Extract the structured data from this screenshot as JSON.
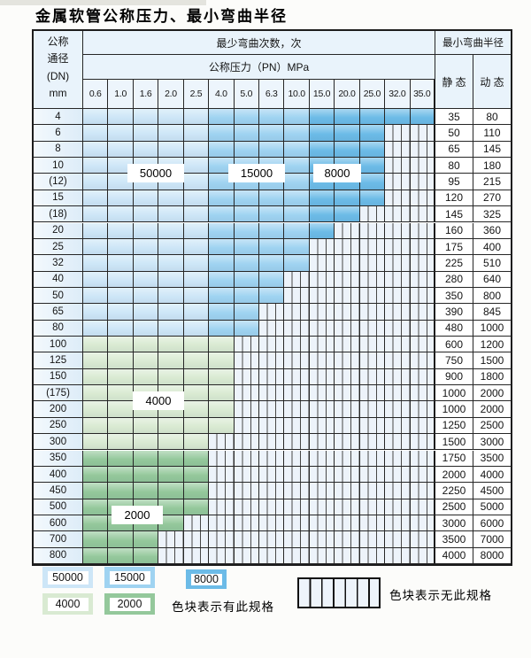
{
  "title": "金属软管公称压力、最小弯曲半径",
  "table": {
    "corner": "公称\n通径\n(DN)\nmm",
    "bend_header": "最少弯曲次数，次",
    "pn_header": "公称压力（PN）MPa",
    "radius_header": "最小弯曲半径",
    "static_header": "静 态",
    "dynamic_header": "动 态",
    "pressures": [
      "0.6",
      "1.0",
      "1.6",
      "2.0",
      "2.5",
      "4.0",
      "5.0",
      "6.3",
      "10.0",
      "15.0",
      "20.0",
      "25.0",
      "32.0",
      "35.0"
    ],
    "rows": [
      {
        "dn": "4",
        "until": "35.0",
        "palette": "blue",
        "static": "35",
        "dynamic": "80"
      },
      {
        "dn": "6",
        "until": "25.0",
        "palette": "blue",
        "static": "50",
        "dynamic": "110"
      },
      {
        "dn": "8",
        "until": "25.0",
        "palette": "blue",
        "static": "65",
        "dynamic": "145"
      },
      {
        "dn": "10",
        "until": "25.0",
        "palette": "blue",
        "static": "80",
        "dynamic": "180"
      },
      {
        "dn": "(12)",
        "until": "25.0",
        "palette": "blue",
        "static": "95",
        "dynamic": "215"
      },
      {
        "dn": "15",
        "until": "25.0",
        "palette": "blue",
        "static": "120",
        "dynamic": "270"
      },
      {
        "dn": "(18)",
        "until": "20.0",
        "palette": "blue",
        "static": "145",
        "dynamic": "325"
      },
      {
        "dn": "20",
        "until": "15.0",
        "palette": "blue",
        "static": "160",
        "dynamic": "360"
      },
      {
        "dn": "25",
        "until": "10.0",
        "palette": "blue",
        "static": "175",
        "dynamic": "400"
      },
      {
        "dn": "32",
        "until": "10.0",
        "palette": "blue",
        "static": "225",
        "dynamic": "510"
      },
      {
        "dn": "40",
        "until": "6.3",
        "palette": "blue",
        "static": "280",
        "dynamic": "640"
      },
      {
        "dn": "50",
        "until": "6.3",
        "palette": "blue",
        "static": "350",
        "dynamic": "800"
      },
      {
        "dn": "65",
        "until": "5.0",
        "palette": "blue",
        "static": "390",
        "dynamic": "845"
      },
      {
        "dn": "80",
        "until": "5.0",
        "palette": "blue",
        "static": "480",
        "dynamic": "1000"
      },
      {
        "dn": "100",
        "until": "4.0",
        "palette": "green4000",
        "static": "600",
        "dynamic": "1200"
      },
      {
        "dn": "125",
        "until": "4.0",
        "palette": "green4000",
        "static": "750",
        "dynamic": "1500"
      },
      {
        "dn": "150",
        "until": "4.0",
        "palette": "green4000",
        "static": "900",
        "dynamic": "1800"
      },
      {
        "dn": "(175)",
        "until": "4.0",
        "palette": "green4000",
        "static": "1000",
        "dynamic": "2000"
      },
      {
        "dn": "200",
        "until": "4.0",
        "palette": "green4000",
        "static": "1000",
        "dynamic": "2000"
      },
      {
        "dn": "250",
        "until": "4.0",
        "palette": "green4000",
        "static": "1250",
        "dynamic": "2500"
      },
      {
        "dn": "300",
        "until": "2.5",
        "palette": "green4000",
        "static": "1500",
        "dynamic": "3000"
      },
      {
        "dn": "350",
        "until": "2.5",
        "palette": "green2000",
        "static": "1750",
        "dynamic": "3500"
      },
      {
        "dn": "400",
        "until": "2.5",
        "palette": "green2000",
        "static": "2000",
        "dynamic": "4000"
      },
      {
        "dn": "450",
        "until": "2.5",
        "palette": "green2000",
        "static": "2250",
        "dynamic": "4500"
      },
      {
        "dn": "500",
        "until": "2.5",
        "palette": "green2000",
        "static": "2500",
        "dynamic": "5000"
      },
      {
        "dn": "600",
        "until": "2.0",
        "palette": "green2000",
        "static": "3000",
        "dynamic": "6000"
      },
      {
        "dn": "700",
        "until": "1.6",
        "palette": "green2000",
        "static": "3500",
        "dynamic": "7000"
      },
      {
        "dn": "800",
        "until": "1.6",
        "palette": "green2000",
        "static": "4000",
        "dynamic": "8000"
      }
    ]
  },
  "zone_labels": [
    {
      "text": "50000"
    },
    {
      "text": "15000"
    },
    {
      "text": "8000"
    },
    {
      "text": "4000"
    },
    {
      "text": "2000"
    }
  ],
  "legend": {
    "swatches": [
      {
        "label": "50000",
        "color_key": "blue50000"
      },
      {
        "label": "15000",
        "color_key": "blue15000"
      },
      {
        "label": "8000",
        "color_key": "blue8000"
      },
      {
        "label": "4000",
        "color_key": "green4000"
      },
      {
        "label": "2000",
        "color_key": "green2000"
      }
    ],
    "has_spec_text": "色块表示有此规格",
    "no_spec_text": "色块表示无此规格"
  },
  "colors": {
    "blue50000": "#cde6f7",
    "blue15000": "#9fd3f1",
    "blue8000": "#6cbbe7",
    "green4000": "#d9ead2",
    "green2000": "#94c89b",
    "hatch_bg": "#edf3fa",
    "grid": "#262626"
  }
}
